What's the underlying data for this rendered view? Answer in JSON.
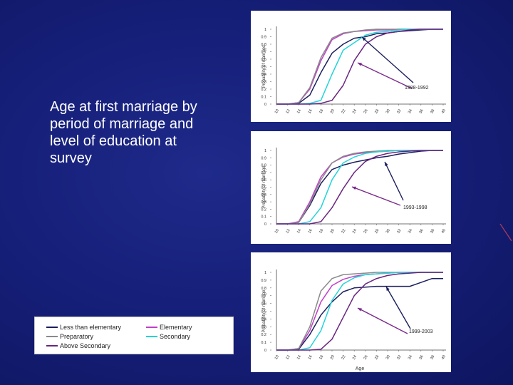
{
  "caption": "Age at first marriage by period of marriage and level of education at survey",
  "colors": {
    "less_than_elementary": "#1b1f5e",
    "elementary": "#c040c8",
    "preparatory": "#8a8a8a",
    "secondary": "#22d4d8",
    "above_secondary": "#6a2480",
    "arrow_blue": "#1b1f5e",
    "arrow_purple": "#7a2a8a"
  },
  "legend": [
    {
      "key": "less_than_elementary",
      "label": "Less than elementary"
    },
    {
      "key": "elementary",
      "label": "Elementary"
    },
    {
      "key": "preparatory",
      "label": "Preparatory"
    },
    {
      "key": "secondary",
      "label": "Secondary"
    },
    {
      "key": "above_secondary",
      "label": "Above Secondary"
    }
  ],
  "chart_data": [
    {
      "type": "line",
      "period_label": "1988-1992",
      "ylabel": "Propability of marriage",
      "xlabel": "",
      "ylim": [
        0,
        1
      ],
      "yticks": [
        "0",
        "0.1",
        "0.2",
        "0.3",
        "0.4",
        "0.5",
        "0.6",
        "0.7",
        "0.8",
        "0.9",
        "1"
      ],
      "x": [
        10,
        12,
        14,
        16,
        18,
        20,
        22,
        24,
        26,
        28,
        30,
        32,
        34,
        36,
        38,
        40
      ],
      "series": [
        {
          "key": "less_than_elementary",
          "values": [
            0,
            0,
            0.01,
            0.12,
            0.42,
            0.68,
            0.8,
            0.88,
            0.9,
            0.94,
            0.95,
            0.97,
            0.98,
            0.99,
            1.0,
            1.0
          ]
        },
        {
          "key": "elementary",
          "values": [
            0,
            0,
            0.02,
            0.2,
            0.58,
            0.86,
            0.94,
            0.97,
            0.98,
            0.99,
            0.99,
            1.0,
            1.0,
            1.0,
            1.0,
            1.0
          ]
        },
        {
          "key": "preparatory",
          "values": [
            0,
            0,
            0.02,
            0.22,
            0.62,
            0.88,
            0.95,
            0.97,
            0.99,
            1.0,
            1.0,
            1.0,
            1.0,
            1.0,
            1.0,
            1.0
          ]
        },
        {
          "key": "secondary",
          "values": [
            0,
            0,
            0,
            0.01,
            0.05,
            0.4,
            0.72,
            0.82,
            0.92,
            0.96,
            0.97,
            0.99,
            1.0,
            1.0,
            1.0,
            1.0
          ]
        },
        {
          "key": "above_secondary",
          "values": [
            0,
            0,
            0,
            0,
            0.01,
            0.05,
            0.25,
            0.58,
            0.8,
            0.9,
            0.95,
            0.97,
            0.99,
            1.0,
            1.0,
            1.0
          ]
        }
      ]
    },
    {
      "type": "line",
      "period_label": "1993-1998",
      "ylabel": "Propability of marriage",
      "xlabel": "",
      "ylim": [
        0,
        1
      ],
      "yticks": [
        "0",
        "0.1",
        "0.2",
        "0.3",
        "0.4",
        "0.5",
        "0.6",
        "0.7",
        "0.8",
        "0.9",
        "1"
      ],
      "x": [
        10,
        12,
        14,
        16,
        18,
        20,
        22,
        24,
        26,
        28,
        30,
        32,
        34,
        36,
        38,
        40
      ],
      "series": [
        {
          "key": "less_than_elementary",
          "values": [
            0,
            0,
            0.02,
            0.25,
            0.55,
            0.74,
            0.8,
            0.84,
            0.87,
            0.9,
            0.92,
            0.95,
            0.97,
            0.99,
            1.0,
            1.0
          ]
        },
        {
          "key": "elementary",
          "values": [
            0,
            0,
            0.03,
            0.3,
            0.64,
            0.83,
            0.91,
            0.95,
            0.97,
            0.98,
            0.99,
            1.0,
            1.0,
            1.0,
            1.0,
            1.0
          ]
        },
        {
          "key": "preparatory",
          "values": [
            0,
            0,
            0.02,
            0.27,
            0.6,
            0.83,
            0.92,
            0.96,
            0.98,
            0.99,
            1.0,
            1.0,
            1.0,
            1.0,
            1.0,
            1.0
          ]
        },
        {
          "key": "secondary",
          "values": [
            0,
            0,
            0,
            0.03,
            0.22,
            0.6,
            0.83,
            0.91,
            0.96,
            0.98,
            0.99,
            1.0,
            1.0,
            1.0,
            1.0,
            1.0
          ]
        },
        {
          "key": "above_secondary",
          "values": [
            0,
            0,
            0,
            0,
            0.03,
            0.22,
            0.48,
            0.7,
            0.85,
            0.92,
            0.96,
            0.98,
            0.99,
            1.0,
            1.0,
            1.0
          ]
        }
      ]
    },
    {
      "type": "line",
      "period_label": "1999-2003",
      "ylabel": "Probability of marriage",
      "xlabel": "Age",
      "ylim": [
        0,
        1
      ],
      "yticks": [
        "0",
        "0.1",
        "0.2",
        "0.3",
        "0.4",
        "0.5",
        "0.6",
        "0.7",
        "0.8",
        "0.9",
        "1"
      ],
      "x": [
        10,
        12,
        14,
        16,
        18,
        20,
        22,
        24,
        26,
        28,
        30,
        32,
        34,
        36,
        38,
        40
      ],
      "series": [
        {
          "key": "less_than_elementary",
          "values": [
            0,
            0,
            0.01,
            0.2,
            0.45,
            0.62,
            0.75,
            0.8,
            0.81,
            0.82,
            0.82,
            0.82,
            0.82,
            0.87,
            0.92,
            0.92
          ]
        },
        {
          "key": "elementary",
          "values": [
            0,
            0,
            0.02,
            0.25,
            0.62,
            0.83,
            0.91,
            0.95,
            0.97,
            0.98,
            0.99,
            1.0,
            1.0,
            1.0,
            1.0,
            1.0
          ]
        },
        {
          "key": "preparatory",
          "values": [
            0,
            0,
            0.02,
            0.3,
            0.76,
            0.92,
            0.97,
            0.98,
            0.99,
            1.0,
            1.0,
            1.0,
            1.0,
            1.0,
            1.0,
            1.0
          ]
        },
        {
          "key": "secondary",
          "values": [
            0,
            0,
            0,
            0.03,
            0.25,
            0.64,
            0.85,
            0.93,
            0.97,
            0.98,
            0.99,
            1.0,
            1.0,
            1.0,
            1.0,
            1.0
          ]
        },
        {
          "key": "above_secondary",
          "values": [
            0,
            0,
            0,
            0,
            0.01,
            0.14,
            0.42,
            0.7,
            0.85,
            0.92,
            0.96,
            0.98,
            0.99,
            1.0,
            1.0,
            1.0
          ]
        }
      ]
    }
  ]
}
